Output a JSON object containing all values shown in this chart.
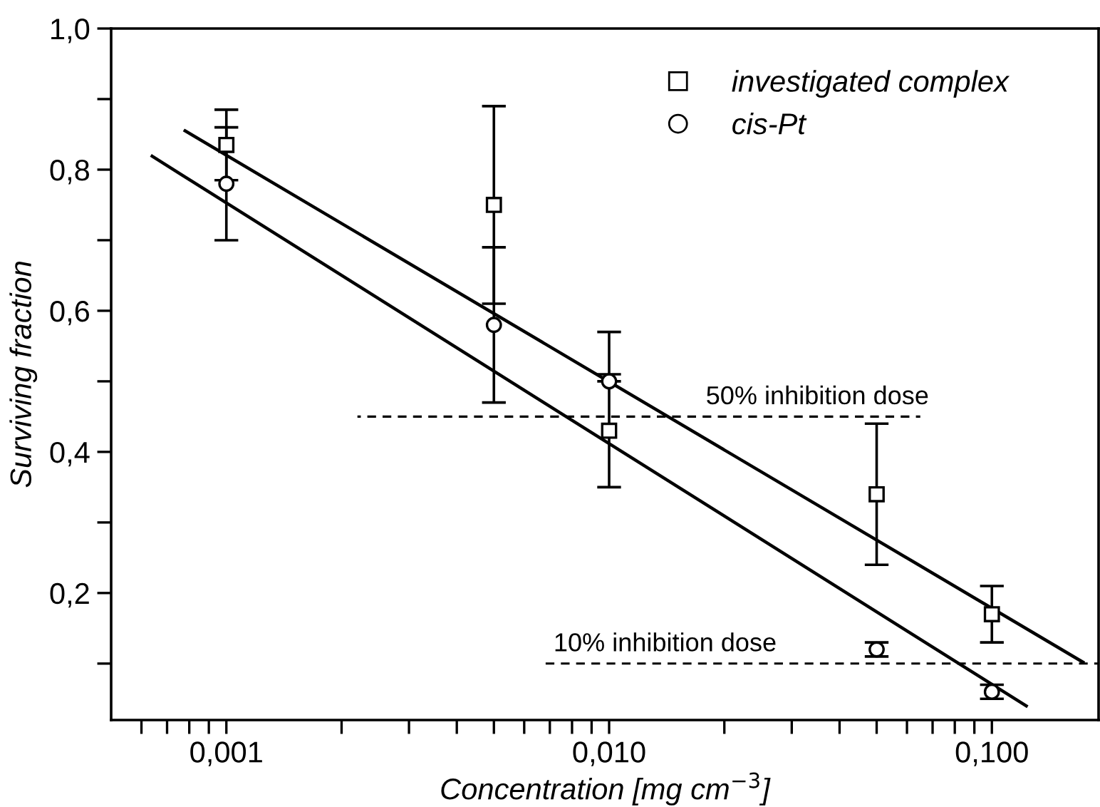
{
  "chart_data": {
    "type": "scatter",
    "xlabel": "Concentration [mg cm$^{−3}$]",
    "ylabel": "Surviving fraction",
    "log": "x",
    "xlim": [
      0.0005,
      0.19
    ],
    "ylim": [
      0.02,
      1.0
    ],
    "xticks": [
      {
        "value": 0.0006,
        "label": null
      },
      {
        "value": 0.0007,
        "label": null
      },
      {
        "value": 0.0008,
        "label": null
      },
      {
        "value": 0.0009,
        "label": null
      },
      {
        "value": 0.001,
        "label": "0,001"
      },
      {
        "value": 0.002,
        "label": null
      },
      {
        "value": 0.003,
        "label": null
      },
      {
        "value": 0.004,
        "label": null
      },
      {
        "value": 0.005,
        "label": null
      },
      {
        "value": 0.006,
        "label": null
      },
      {
        "value": 0.007,
        "label": null
      },
      {
        "value": 0.008,
        "label": null
      },
      {
        "value": 0.009,
        "label": null
      },
      {
        "value": 0.01,
        "label": "0,010"
      },
      {
        "value": 0.02,
        "label": null
      },
      {
        "value": 0.03,
        "label": null
      },
      {
        "value": 0.04,
        "label": null
      },
      {
        "value": 0.05,
        "label": null
      },
      {
        "value": 0.06,
        "label": null
      },
      {
        "value": 0.07,
        "label": null
      },
      {
        "value": 0.08,
        "label": null
      },
      {
        "value": 0.09,
        "label": null
      },
      {
        "value": 0.1,
        "label": "0,100"
      }
    ],
    "yticks": [
      {
        "value": 0.1,
        "label": null
      },
      {
        "value": 0.2,
        "label": "0,2"
      },
      {
        "value": 0.3,
        "label": null
      },
      {
        "value": 0.4,
        "label": "0,4"
      },
      {
        "value": 0.5,
        "label": null
      },
      {
        "value": 0.6,
        "label": "0,6"
      },
      {
        "value": 0.7,
        "label": null
      },
      {
        "value": 0.8,
        "label": "0,8"
      },
      {
        "value": 0.9,
        "label": null
      },
      {
        "value": 1.0,
        "label": "1,0"
      }
    ],
    "grid": false,
    "legend": "top right",
    "series": [
      {
        "name": "investigated complex",
        "marker": "square",
        "color": "#000000",
        "x": [
          0.001,
          0.005,
          0.01,
          0.05,
          0.1
        ],
        "values": [
          0.835,
          0.75,
          0.43,
          0.34,
          0.17
        ],
        "errors": [
          [
            0.785,
            0.885
          ],
          [
            0.61,
            0.89
          ],
          [
            0.35,
            0.51
          ],
          [
            0.24,
            0.44
          ],
          [
            0.13,
            0.21
          ]
        ]
      },
      {
        "name": "cis-Pt",
        "marker": "circle",
        "color": "#000000",
        "x": [
          0.001,
          0.005,
          0.01,
          0.05,
          0.1
        ],
        "values": [
          0.78,
          0.58,
          0.5,
          0.12,
          0.06
        ],
        "errors": [
          [
            0.7,
            0.86
          ],
          [
            0.47,
            0.69
          ],
          [
            0.5,
            0.57
          ],
          [
            0.11,
            0.13
          ],
          [
            0.05,
            0.07
          ]
        ]
      },
      {
        "type": "line",
        "marker": "none",
        "line_style": "solid",
        "color": "#000000",
        "x": [
          0.00078,
          0.173
        ],
        "values": [
          0.855,
          0.102
        ]
      },
      {
        "type": "line",
        "marker": "none",
        "line_style": "solid",
        "color": "#000000",
        "x": [
          0.00064,
          0.123
        ],
        "values": [
          0.819,
          0.04
        ]
      },
      {
        "type": "line",
        "marker": "none",
        "line_style": "dashed",
        "color": "#000000",
        "x": [
          0.0022,
          0.065
        ],
        "values": [
          0.45,
          0.45
        ]
      },
      {
        "type": "line",
        "marker": "none",
        "line_style": "dashed",
        "color": "#000000",
        "x": [
          0.0067,
          0.19
        ],
        "values": [
          0.1,
          0.1
        ]
      }
    ],
    "annotations": [
      {
        "text": "50% inhibition dose",
        "x": 0.035,
        "y": 0.46
      },
      {
        "text": "10% inhibition dose",
        "x": 0.014,
        "y": 0.11
      }
    ]
  }
}
